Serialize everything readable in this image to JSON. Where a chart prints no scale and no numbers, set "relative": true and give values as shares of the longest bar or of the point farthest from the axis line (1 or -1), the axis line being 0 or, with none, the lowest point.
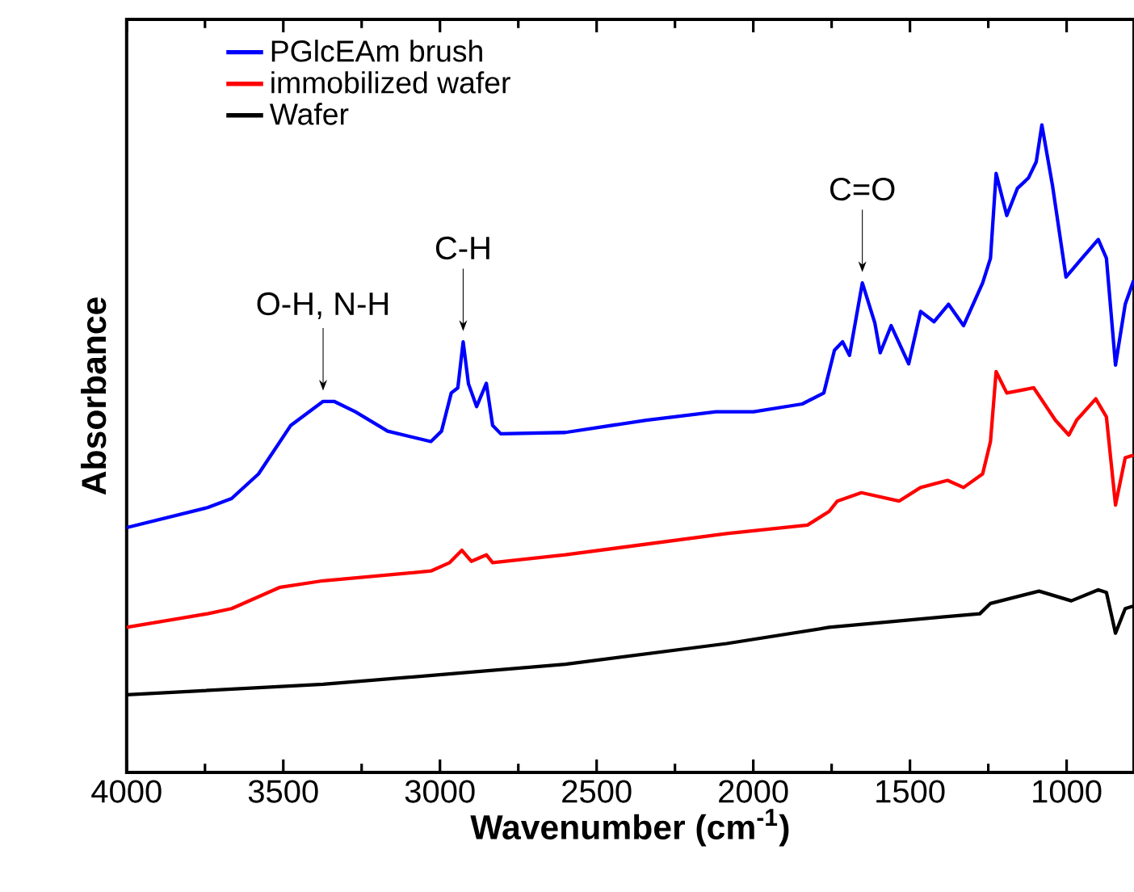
{
  "chart_data": {
    "type": "line",
    "xlabel": "Wavenumber (cm$^{-1}$)",
    "ylabel": "Absorbance",
    "relative": true,
    "xlim": [
      4000,
      785
    ],
    "xticks": [
      4000,
      3500,
      3000,
      2500,
      2000,
      1500,
      1000
    ],
    "legend": "top left",
    "marker": "none",
    "line_style": "solid",
    "annotations": [
      {
        "text": "O-H, N-H",
        "x": 3373,
        "y": 0.573
      },
      {
        "text": "C-H",
        "x": 2926,
        "y": 0.665
      },
      {
        "text": "C=O",
        "x": 1652,
        "y": 0.756
      }
    ],
    "series": [
      {
        "name": "PGlcEAm brush",
        "color": "#0000ff",
        "x": [
          4000,
          3742,
          3665,
          3579,
          3476,
          3373,
          3338,
          3270,
          3167,
          3029,
          2995,
          2964,
          2943,
          2926,
          2909,
          2883,
          2852,
          2832,
          2806,
          2600,
          2342,
          2119,
          1999,
          1844,
          1775,
          1741,
          1715,
          1693,
          1652,
          1612,
          1595,
          1560,
          1504,
          1466,
          1423,
          1377,
          1329,
          1268,
          1243,
          1225,
          1191,
          1157,
          1122,
          1097,
          1079,
          1045,
          1002,
          951,
          899,
          873,
          844,
          813,
          786
        ],
        "values": [
          0.378,
          0.409,
          0.423,
          0.461,
          0.536,
          0.573,
          0.573,
          0.557,
          0.527,
          0.511,
          0.527,
          0.586,
          0.594,
          0.665,
          0.6,
          0.565,
          0.601,
          0.536,
          0.523,
          0.525,
          0.544,
          0.557,
          0.557,
          0.569,
          0.586,
          0.652,
          0.665,
          0.644,
          0.756,
          0.694,
          0.648,
          0.69,
          0.631,
          0.712,
          0.696,
          0.723,
          0.69,
          0.756,
          0.794,
          0.925,
          0.86,
          0.902,
          0.918,
          0.943,
          1.0,
          0.906,
          0.765,
          0.794,
          0.823,
          0.794,
          0.629,
          0.723,
          0.76
        ]
      },
      {
        "name": "immobilized wafer",
        "color": "#ff0000",
        "x": [
          4000,
          3742,
          3665,
          3510,
          3373,
          3029,
          2969,
          2930,
          2900,
          2852,
          2832,
          2600,
          2085,
          1827,
          1758,
          1732,
          1655,
          1535,
          1466,
          1380,
          1329,
          1268,
          1243,
          1225,
          1191,
          1105,
          1036,
          993,
          968,
          907,
          873,
          844,
          813,
          786
        ],
        "values": [
          0.224,
          0.245,
          0.253,
          0.286,
          0.296,
          0.311,
          0.324,
          0.343,
          0.326,
          0.336,
          0.324,
          0.336,
          0.369,
          0.382,
          0.403,
          0.419,
          0.432,
          0.419,
          0.44,
          0.451,
          0.44,
          0.461,
          0.511,
          0.619,
          0.586,
          0.594,
          0.544,
          0.521,
          0.544,
          0.577,
          0.549,
          0.413,
          0.486,
          0.49
        ]
      },
      {
        "name": "Wafer",
        "color": "#000000",
        "x": [
          4000,
          3373,
          2600,
          2085,
          1758,
          1397,
          1277,
          1243,
          1088,
          985,
          899,
          873,
          844,
          813,
          786
        ],
        "values": [
          0.12,
          0.136,
          0.167,
          0.199,
          0.224,
          0.24,
          0.245,
          0.261,
          0.28,
          0.265,
          0.282,
          0.278,
          0.215,
          0.253,
          0.257
        ]
      }
    ]
  }
}
